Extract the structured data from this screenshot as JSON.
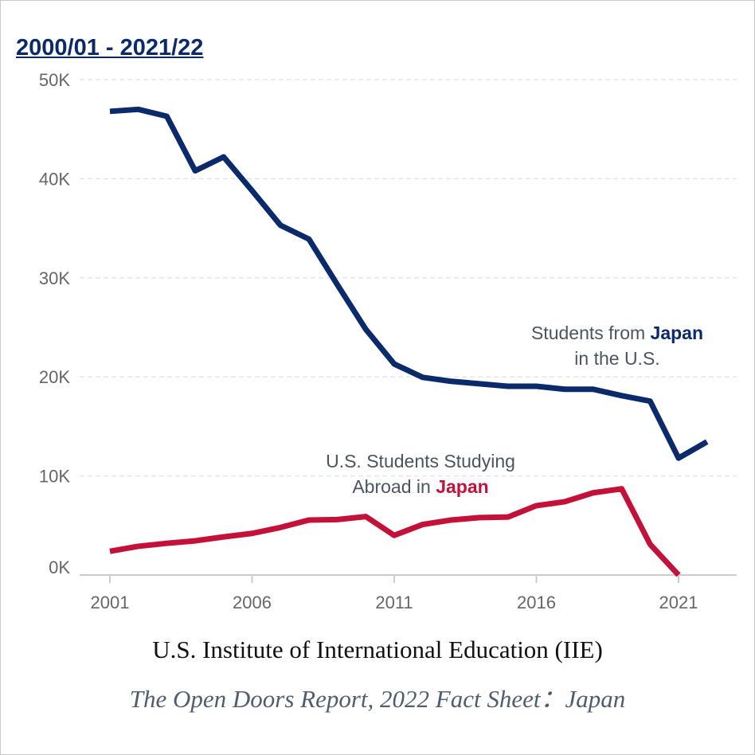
{
  "period_title": "2000/01 - 2021/22",
  "source": "U.S. Institute of International Education (IIE)",
  "report": "The Open Doors Report, 2022  Fact Sheet：Japan",
  "colors": {
    "japan_in_us": "#0b2a6b",
    "us_in_japan": "#c4113a",
    "grid": "#e6e6e6",
    "axis": "#cccccc"
  },
  "annotations": {
    "japan_in_us": {
      "line1_prefix": "Students from ",
      "line1_strong": "Japan",
      "line2": "in the U.S."
    },
    "us_in_japan": {
      "line1": "U.S. Students Studying",
      "line2_prefix": "Abroad in ",
      "line2_strong": "Japan"
    }
  },
  "chart_data": {
    "type": "line",
    "x": [
      2001,
      2002,
      2003,
      2004,
      2005,
      2006,
      2007,
      2008,
      2009,
      2010,
      2011,
      2012,
      2013,
      2014,
      2015,
      2016,
      2017,
      2018,
      2019,
      2020,
      2021,
      2022
    ],
    "series": [
      {
        "name": "Students from Japan in the U.S.",
        "values": [
          46800,
          47000,
          46300,
          40800,
          42200,
          38800,
          35300,
          33900,
          29300,
          24800,
          21300,
          19950,
          19550,
          19300,
          19050,
          19050,
          18750,
          18750,
          18100,
          17550,
          11800,
          13450
        ]
      },
      {
        "name": "U.S. Students Studying Abroad in Japan",
        "values": [
          2400,
          2900,
          3200,
          3450,
          3850,
          4200,
          4800,
          5550,
          5600,
          5900,
          4000,
          5100,
          5550,
          5800,
          5850,
          7000,
          7400,
          8300,
          8700,
          3100,
          0,
          null
        ]
      }
    ],
    "xticks": [
      "2001",
      "2006",
      "2011",
      "2016",
      "2021"
    ],
    "yticks": [
      "0K",
      "10K",
      "20K",
      "30K",
      "40K",
      "50K"
    ],
    "ylim": [
      0,
      50000
    ],
    "xlim": [
      2000.3,
      2022.7
    ],
    "grid": true,
    "xlabel": "",
    "ylabel": ""
  }
}
